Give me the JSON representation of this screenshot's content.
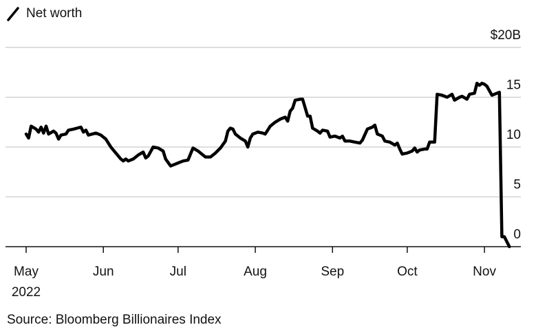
{
  "legend": {
    "label": "Net worth",
    "marker": "diagonal-line-icon"
  },
  "source": "Source: Bloomberg Billionaires Index",
  "chart_data": {
    "type": "line",
    "y_axis": {
      "min": 0,
      "max": 20,
      "ticks": [
        0,
        5,
        10,
        15,
        20
      ],
      "tick_labels": [
        "0",
        "5",
        "10",
        "15",
        "$20B"
      ],
      "position": "right",
      "grid": true
    },
    "x_axis": {
      "ticks": [
        "2022-05-01",
        "2022-06-01",
        "2022-07-01",
        "2022-08-01",
        "2022-09-01",
        "2022-10-01",
        "2022-11-01"
      ],
      "tick_labels": [
        "May",
        "Jun",
        "Jul",
        "Aug",
        "Sep",
        "Oct",
        "Nov"
      ],
      "year_label": "2022"
    },
    "series": [
      {
        "color": "#000000",
        "points": [
          [
            "2022-05-01",
            11.3
          ],
          [
            "2022-05-02",
            10.9
          ],
          [
            "2022-05-03",
            12.1
          ],
          [
            "2022-05-05",
            11.8
          ],
          [
            "2022-05-06",
            11.5
          ],
          [
            "2022-05-07",
            12.0
          ],
          [
            "2022-05-08",
            11.4
          ],
          [
            "2022-05-09",
            12.1
          ],
          [
            "2022-05-10",
            11.3
          ],
          [
            "2022-05-12",
            11.6
          ],
          [
            "2022-05-13",
            11.4
          ],
          [
            "2022-05-14",
            10.8
          ],
          [
            "2022-05-15",
            11.2
          ],
          [
            "2022-05-17",
            11.3
          ],
          [
            "2022-05-18",
            11.7
          ],
          [
            "2022-05-20",
            11.8
          ],
          [
            "2022-05-23",
            12.0
          ],
          [
            "2022-05-24",
            11.5
          ],
          [
            "2022-05-25",
            11.7
          ],
          [
            "2022-05-26",
            11.2
          ],
          [
            "2022-05-29",
            11.4
          ],
          [
            "2022-05-31",
            11.2
          ],
          [
            "2022-06-02",
            10.8
          ],
          [
            "2022-06-04",
            10.0
          ],
          [
            "2022-06-06",
            9.4
          ],
          [
            "2022-06-08",
            8.8
          ],
          [
            "2022-06-09",
            8.6
          ],
          [
            "2022-06-10",
            8.8
          ],
          [
            "2022-06-11",
            8.6
          ],
          [
            "2022-06-13",
            8.8
          ],
          [
            "2022-06-15",
            9.2
          ],
          [
            "2022-06-17",
            9.5
          ],
          [
            "2022-06-18",
            8.9
          ],
          [
            "2022-06-19",
            9.1
          ],
          [
            "2022-06-21",
            10.0
          ],
          [
            "2022-06-23",
            9.9
          ],
          [
            "2022-06-25",
            9.6
          ],
          [
            "2022-06-26",
            8.8
          ],
          [
            "2022-06-28",
            8.1
          ],
          [
            "2022-07-01",
            8.4
          ],
          [
            "2022-07-03",
            8.6
          ],
          [
            "2022-07-05",
            8.7
          ],
          [
            "2022-07-07",
            9.9
          ],
          [
            "2022-07-09",
            9.6
          ],
          [
            "2022-07-11",
            9.2
          ],
          [
            "2022-07-12",
            9.0
          ],
          [
            "2022-07-14",
            9.0
          ],
          [
            "2022-07-16",
            9.4
          ],
          [
            "2022-07-18",
            9.9
          ],
          [
            "2022-07-20",
            10.6
          ],
          [
            "2022-07-21",
            11.6
          ],
          [
            "2022-07-22",
            11.9
          ],
          [
            "2022-07-23",
            11.8
          ],
          [
            "2022-07-24",
            11.3
          ],
          [
            "2022-07-26",
            10.9
          ],
          [
            "2022-07-28",
            10.6
          ],
          [
            "2022-07-29",
            10.0
          ],
          [
            "2022-07-30",
            10.9
          ],
          [
            "2022-07-31",
            11.3
          ],
          [
            "2022-08-02",
            11.5
          ],
          [
            "2022-08-04",
            11.4
          ],
          [
            "2022-08-05",
            11.3
          ],
          [
            "2022-08-07",
            12.1
          ],
          [
            "2022-08-09",
            12.5
          ],
          [
            "2022-08-11",
            12.8
          ],
          [
            "2022-08-13",
            13.0
          ],
          [
            "2022-08-14",
            12.6
          ],
          [
            "2022-08-15",
            13.6
          ],
          [
            "2022-08-16",
            13.9
          ],
          [
            "2022-08-17",
            14.7
          ],
          [
            "2022-08-19",
            14.8
          ],
          [
            "2022-08-20",
            14.8
          ],
          [
            "2022-08-22",
            13.1
          ],
          [
            "2022-08-23",
            13.1
          ],
          [
            "2022-08-24",
            11.9
          ],
          [
            "2022-08-26",
            11.6
          ],
          [
            "2022-08-27",
            11.4
          ],
          [
            "2022-08-28",
            11.7
          ],
          [
            "2022-08-30",
            11.6
          ],
          [
            "2022-08-31",
            11.0
          ],
          [
            "2022-09-02",
            11.1
          ],
          [
            "2022-09-04",
            10.9
          ],
          [
            "2022-09-05",
            11.1
          ],
          [
            "2022-09-06",
            10.6
          ],
          [
            "2022-09-08",
            10.6
          ],
          [
            "2022-09-10",
            10.5
          ],
          [
            "2022-09-12",
            10.4
          ],
          [
            "2022-09-13",
            10.7
          ],
          [
            "2022-09-15",
            11.8
          ],
          [
            "2022-09-17",
            12.0
          ],
          [
            "2022-09-18",
            12.2
          ],
          [
            "2022-09-19",
            11.3
          ],
          [
            "2022-09-21",
            11.1
          ],
          [
            "2022-09-22",
            10.6
          ],
          [
            "2022-09-24",
            10.5
          ],
          [
            "2022-09-26",
            10.2
          ],
          [
            "2022-09-27",
            10.4
          ],
          [
            "2022-09-28",
            9.8
          ],
          [
            "2022-09-29",
            9.3
          ],
          [
            "2022-10-01",
            9.4
          ],
          [
            "2022-10-03",
            9.6
          ],
          [
            "2022-10-04",
            9.9
          ],
          [
            "2022-10-05",
            9.5
          ],
          [
            "2022-10-06",
            9.7
          ],
          [
            "2022-10-08",
            9.8
          ],
          [
            "2022-10-09",
            9.8
          ],
          [
            "2022-10-10",
            10.5
          ],
          [
            "2022-10-12",
            10.5
          ],
          [
            "2022-10-13",
            15.3
          ],
          [
            "2022-10-15",
            15.2
          ],
          [
            "2022-10-17",
            15.0
          ],
          [
            "2022-10-19",
            15.3
          ],
          [
            "2022-10-20",
            14.7
          ],
          [
            "2022-10-22",
            15.0
          ],
          [
            "2022-10-23",
            15.1
          ],
          [
            "2022-10-25",
            14.8
          ],
          [
            "2022-10-26",
            15.3
          ],
          [
            "2022-10-28",
            15.4
          ],
          [
            "2022-10-29",
            16.4
          ],
          [
            "2022-10-30",
            16.2
          ],
          [
            "2022-10-31",
            16.4
          ],
          [
            "2022-11-01",
            16.3
          ],
          [
            "2022-11-02",
            16.1
          ],
          [
            "2022-11-04",
            15.2
          ],
          [
            "2022-11-06",
            15.4
          ],
          [
            "2022-11-07",
            15.5
          ],
          [
            "2022-11-08",
            1.0
          ],
          [
            "2022-11-09",
            1.0
          ],
          [
            "2022-11-11",
            0.0
          ]
        ]
      }
    ]
  }
}
